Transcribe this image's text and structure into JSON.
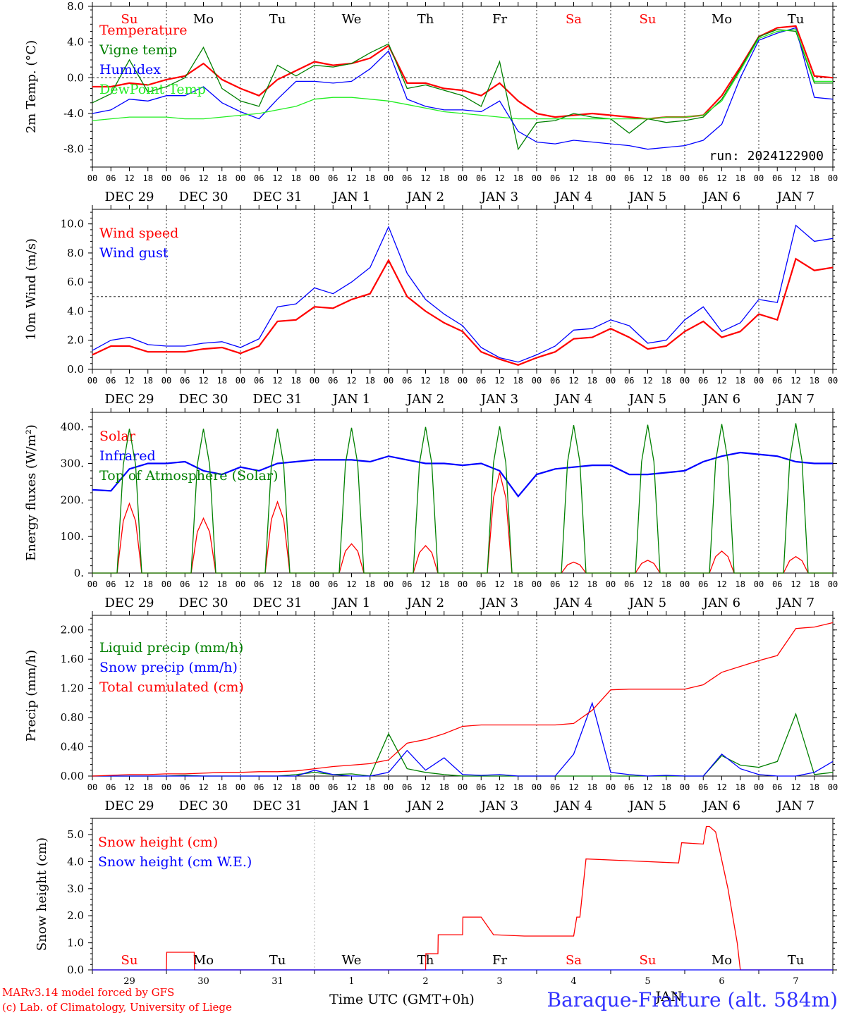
{
  "colors": {
    "red": "#ff0000",
    "green": "#008000",
    "blue": "#0000ff",
    "lightgreen": "#22ee22",
    "station": "#3333ff"
  },
  "run_label": "run: 2024122900",
  "hour_ticks": [
    "00",
    "06",
    "12",
    "18"
  ],
  "date_labels": [
    "DEC 29",
    "DEC 30",
    "DEC 31",
    "JAN  1",
    "JAN  2",
    "JAN  3",
    "JAN  4",
    "JAN  5",
    "JAN  6",
    "JAN  7"
  ],
  "weekdays": [
    {
      "label": "Su",
      "color": "#ff0000"
    },
    {
      "label": "Mo",
      "color": "#000000"
    },
    {
      "label": "Tu",
      "color": "#000000"
    },
    {
      "label": "We",
      "color": "#000000"
    },
    {
      "label": "Th",
      "color": "#000000"
    },
    {
      "label": "Fr",
      "color": "#000000"
    },
    {
      "label": "Sa",
      "color": "#ff0000"
    },
    {
      "label": "Su",
      "color": "#ff0000"
    },
    {
      "label": "Mo",
      "color": "#000000"
    },
    {
      "label": "Tu",
      "color": "#000000"
    }
  ],
  "bottom_day_numbers": [
    "29",
    "30",
    "31",
    "1",
    "2",
    "3",
    "4",
    "5",
    "6",
    "7"
  ],
  "bottom_month_label": "JAN",
  "footer": {
    "line1": "MARv3.14 model forced by GFS",
    "line2": "(c) Lab. of Climatology, University of Liege",
    "xtitle": "Time UTC (GMT+0h)",
    "station": "Baraque-Fraiture (alt. 584m)"
  },
  "chart_data": [
    {
      "type": "line",
      "ylabel": "2m Temp. (°C)",
      "ylim": [
        -10,
        8
      ],
      "yticks": [
        "8.0",
        "4.0",
        "0.0",
        "-4.0",
        "-8.0"
      ],
      "ytick_values": [
        8,
        4,
        0,
        -4,
        -8
      ],
      "dashed_y": 0,
      "x_hours": [
        0,
        6,
        12,
        18,
        24,
        30,
        36,
        42,
        48,
        54,
        60,
        66,
        72,
        78,
        84,
        90,
        96,
        102,
        108,
        114,
        120,
        126,
        132,
        138,
        144,
        150,
        156,
        162,
        168,
        174,
        180,
        186,
        192,
        198,
        204,
        210,
        216,
        222,
        228,
        234,
        240
      ],
      "series": [
        {
          "name": "Temperature",
          "color": "#ff0000",
          "thick": true,
          "values": [
            -1.0,
            -1.0,
            -0.6,
            -0.8,
            -0.2,
            0.2,
            1.6,
            -0.2,
            -1.2,
            -2.0,
            -0.2,
            0.8,
            1.8,
            1.4,
            1.6,
            2.2,
            3.6,
            -0.6,
            -0.6,
            -1.2,
            -1.4,
            -2.0,
            -0.6,
            -2.6,
            -4.0,
            -4.4,
            -4.2,
            -4.0,
            -4.2,
            -4.4,
            -4.6,
            -4.4,
            -4.4,
            -4.2,
            -2.0,
            1.2,
            4.6,
            5.6,
            5.8,
            0.2,
            0.0
          ]
        },
        {
          "name": "Vigne temp",
          "color": "#008000",
          "thick": false,
          "values": [
            -2.8,
            -1.8,
            2.0,
            -1.6,
            -1.0,
            0.0,
            3.4,
            -1.2,
            -2.6,
            -3.2,
            1.4,
            0.2,
            1.4,
            1.2,
            1.6,
            2.8,
            3.8,
            -1.2,
            -0.8,
            -1.4,
            -2.0,
            -3.2,
            1.8,
            -8.0,
            -5.0,
            -4.8,
            -4.0,
            -4.4,
            -4.6,
            -6.2,
            -4.6,
            -5.0,
            -4.8,
            -4.4,
            -2.4,
            1.0,
            4.6,
            5.4,
            5.2,
            -0.6,
            -0.6
          ]
        },
        {
          "name": "Humidex",
          "color": "#0000ff",
          "thick": false,
          "values": [
            -4.0,
            -3.6,
            -2.4,
            -2.6,
            -2.0,
            -2.0,
            -1.0,
            -2.8,
            -3.8,
            -4.6,
            -2.4,
            -0.4,
            -0.4,
            -0.6,
            -0.4,
            1.0,
            3.0,
            -2.4,
            -3.2,
            -3.6,
            -3.6,
            -3.8,
            -2.6,
            -6.0,
            -7.2,
            -7.4,
            -7.0,
            -7.2,
            -7.4,
            -7.6,
            -8.0,
            -7.8,
            -7.6,
            -7.0,
            -5.2,
            0.0,
            4.2,
            5.0,
            5.6,
            -2.2,
            -2.4
          ]
        },
        {
          "name": "DewPoint Temp",
          "color": "#22ee22",
          "thick": false,
          "values": [
            -4.8,
            -4.6,
            -4.4,
            -4.4,
            -4.4,
            -4.6,
            -4.6,
            -4.4,
            -4.2,
            -4.0,
            -3.6,
            -3.2,
            -2.4,
            -2.2,
            -2.2,
            -2.4,
            -2.6,
            -3.0,
            -3.4,
            -3.8,
            -4.0,
            -4.2,
            -4.4,
            -4.6,
            -4.6,
            -4.6,
            -4.6,
            -4.6,
            -4.6,
            -4.6,
            -4.6,
            -4.4,
            -4.4,
            -4.2,
            -2.6,
            0.8,
            4.4,
            5.2,
            5.4,
            -0.4,
            -0.4
          ]
        }
      ]
    },
    {
      "type": "line",
      "ylabel": "10m Wind (m/s)",
      "ylim": [
        0,
        11
      ],
      "yticks": [
        "10.0",
        "8.0",
        "6.0",
        "4.0",
        "2.0",
        "0.0"
      ],
      "ytick_values": [
        10,
        8,
        6,
        4,
        2,
        0
      ],
      "dashed_y": 5,
      "x_hours": [
        0,
        6,
        12,
        18,
        24,
        30,
        36,
        42,
        48,
        54,
        60,
        66,
        72,
        78,
        84,
        90,
        96,
        102,
        108,
        114,
        120,
        126,
        132,
        138,
        144,
        150,
        156,
        162,
        168,
        174,
        180,
        186,
        192,
        198,
        204,
        210,
        216,
        222,
        228,
        234,
        240
      ],
      "series": [
        {
          "name": "Wind speed",
          "color": "#ff0000",
          "thick": true,
          "values": [
            1.0,
            1.6,
            1.6,
            1.2,
            1.2,
            1.2,
            1.4,
            1.5,
            1.1,
            1.6,
            3.3,
            3.4,
            4.3,
            4.2,
            4.8,
            5.2,
            7.5,
            5.0,
            4.0,
            3.2,
            2.6,
            1.2,
            0.7,
            0.3,
            0.8,
            1.2,
            2.1,
            2.2,
            2.8,
            2.2,
            1.4,
            1.6,
            2.6,
            3.3,
            2.2,
            2.6,
            3.8,
            3.4,
            7.6,
            6.8,
            7.0
          ]
        },
        {
          "name": "Wind gust",
          "color": "#0000ff",
          "thick": false,
          "values": [
            1.3,
            2.0,
            2.2,
            1.7,
            1.6,
            1.6,
            1.8,
            1.9,
            1.5,
            2.1,
            4.3,
            4.5,
            5.6,
            5.2,
            6.0,
            7.0,
            9.8,
            6.6,
            4.8,
            3.8,
            3.0,
            1.5,
            0.8,
            0.5,
            1.0,
            1.6,
            2.7,
            2.8,
            3.4,
            3.0,
            1.8,
            2.0,
            3.4,
            4.3,
            2.6,
            3.2,
            4.8,
            4.6,
            9.9,
            8.8,
            9.0
          ]
        }
      ]
    },
    {
      "type": "line",
      "ylabel": "Energy fluxes (W/m²)",
      "ylim": [
        0,
        440
      ],
      "yticks": [
        "400.",
        "300.",
        "200.",
        "100.",
        "0."
      ],
      "ytick_values": [
        400,
        300,
        200,
        100,
        0
      ],
      "x_hours": [
        0,
        6,
        12,
        18,
        24,
        30,
        36,
        42,
        48,
        54,
        60,
        66,
        72,
        78,
        84,
        90,
        96,
        102,
        108,
        114,
        120,
        126,
        132,
        138,
        144,
        150,
        156,
        162,
        168,
        174,
        180,
        186,
        192,
        198,
        204,
        210,
        216,
        222,
        228,
        234,
        240
      ],
      "series": [
        {
          "name": "Solar",
          "color": "#ff0000",
          "thick": false,
          "daily_peak": [
            190,
            150,
            195,
            80,
            75,
            275,
            30,
            35,
            60,
            45
          ]
        },
        {
          "name": "Infrared",
          "color": "#0000ff",
          "thick": true,
          "values": [
            228,
            225,
            285,
            300,
            300,
            305,
            280,
            270,
            290,
            280,
            300,
            305,
            310,
            310,
            310,
            305,
            320,
            310,
            300,
            300,
            295,
            300,
            280,
            210,
            270,
            285,
            290,
            295,
            295,
            270,
            270,
            275,
            280,
            305,
            320,
            330,
            325,
            320,
            305,
            300,
            300
          ]
        },
        {
          "name": "Top of Atmosphere (Solar)",
          "color": "#008000",
          "thick": false,
          "daily_peak": [
            395,
            395,
            395,
            398,
            400,
            402,
            405,
            406,
            408,
            410
          ]
        }
      ]
    },
    {
      "type": "line",
      "ylabel": "Precip (mm/h)",
      "ylim": [
        0,
        2.2
      ],
      "yticks": [
        "2.00",
        "1.60",
        "1.20",
        "0.80",
        "0.40",
        "0.00"
      ],
      "ytick_values": [
        2.0,
        1.6,
        1.2,
        0.8,
        0.4,
        0.0
      ],
      "x_hours": [
        0,
        6,
        12,
        18,
        24,
        30,
        36,
        42,
        48,
        54,
        60,
        66,
        72,
        78,
        84,
        90,
        96,
        102,
        108,
        114,
        120,
        126,
        132,
        138,
        144,
        150,
        156,
        162,
        168,
        174,
        180,
        186,
        192,
        198,
        204,
        210,
        216,
        222,
        228,
        234,
        240
      ],
      "series": [
        {
          "name": "Liquid precip (mm/h)",
          "color": "#008000",
          "thick": false,
          "values": [
            0,
            0,
            0,
            0,
            0,
            0.01,
            0,
            0,
            0,
            0,
            0,
            0.02,
            0.05,
            0.02,
            0.03,
            0,
            0.58,
            0.1,
            0.05,
            0.02,
            0,
            0,
            0,
            0,
            0,
            0,
            0,
            0,
            0,
            0,
            0,
            0,
            0,
            0,
            0.28,
            0.15,
            0.12,
            0.2,
            0.85,
            0.02,
            0.05
          ]
        },
        {
          "name": "Snow precip (mm/h)",
          "color": "#0000ff",
          "thick": false,
          "values": [
            0,
            0,
            0,
            0,
            0,
            0,
            0,
            0,
            0,
            0,
            0,
            0,
            0.08,
            0.02,
            0,
            0,
            0.05,
            0.35,
            0.08,
            0.25,
            0.02,
            0.01,
            0.02,
            0,
            0,
            0,
            0.3,
            1.0,
            0.05,
            0.02,
            0,
            0.01,
            0,
            0,
            0.3,
            0.1,
            0.02,
            0,
            0,
            0.05,
            0.2
          ]
        },
        {
          "name": "Total cumulated (cm)",
          "color": "#ff0000",
          "thick": false,
          "values": [
            0,
            0.01,
            0.02,
            0.02,
            0.03,
            0.03,
            0.04,
            0.05,
            0.05,
            0.06,
            0.06,
            0.07,
            0.1,
            0.13,
            0.15,
            0.17,
            0.22,
            0.45,
            0.5,
            0.58,
            0.68,
            0.7,
            0.7,
            0.7,
            0.7,
            0.7,
            0.72,
            0.9,
            1.18,
            1.19,
            1.19,
            1.19,
            1.19,
            1.25,
            1.42,
            1.5,
            1.58,
            1.65,
            2.02,
            2.04,
            2.1
          ]
        }
      ]
    },
    {
      "type": "line",
      "ylabel": "Snow height (cm)",
      "ylim": [
        0,
        5.6
      ],
      "yticks": [
        "5.0",
        "4.0",
        "3.0",
        "2.0",
        "1.0",
        "0.0"
      ],
      "ytick_values": [
        5,
        4,
        3,
        2,
        1,
        0
      ],
      "x_hours": [
        0,
        24,
        25,
        24.5,
        48,
        72,
        96,
        108,
        109,
        114,
        115,
        120,
        121,
        126,
        128,
        132,
        138,
        150,
        156,
        158,
        160,
        172,
        173,
        180,
        188,
        189,
        192,
        196,
        198,
        204,
        216,
        240
      ],
      "series": [
        {
          "name": "Snow height (cm)",
          "color": "#ff0000",
          "thick": false,
          "points": [
            [
              0,
              0
            ],
            [
              24,
              0
            ],
            [
              24.1,
              0.65
            ],
            [
              33,
              0.65
            ],
            [
              33.1,
              0
            ],
            [
              108,
              0
            ],
            [
              108.1,
              0.6
            ],
            [
              112,
              0.6
            ],
            [
              112.1,
              1.3
            ],
            [
              120,
              1.3
            ],
            [
              120.1,
              1.95
            ],
            [
              126,
              1.95
            ],
            [
              130,
              1.3
            ],
            [
              140,
              1.25
            ],
            [
              154,
              1.25
            ],
            [
              156,
              1.25
            ],
            [
              157,
              1.95
            ],
            [
              158,
              1.95
            ],
            [
              160,
              4.1
            ],
            [
              190,
              3.95
            ],
            [
              191,
              4.7
            ],
            [
              198,
              4.65
            ],
            [
              199,
              5.3
            ],
            [
              200,
              5.3
            ],
            [
              202,
              5.1
            ],
            [
              206,
              3.0
            ],
            [
              209,
              1.0
            ],
            [
              210,
              0
            ],
            [
              240,
              0
            ]
          ]
        },
        {
          "name": "Snow height (cm W.E.)",
          "color": "#0000ff",
          "thick": false,
          "points": [
            [
              0,
              0
            ],
            [
              240,
              0
            ]
          ]
        }
      ]
    }
  ]
}
